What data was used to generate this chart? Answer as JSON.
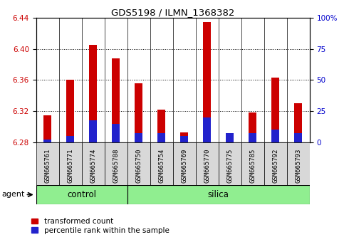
{
  "title": "GDS5198 / ILMN_1368382",
  "samples": [
    "GSM665761",
    "GSM665771",
    "GSM665774",
    "GSM665788",
    "GSM665750",
    "GSM665754",
    "GSM665769",
    "GSM665770",
    "GSM665775",
    "GSM665785",
    "GSM665792",
    "GSM665793"
  ],
  "groups": [
    "control",
    "control",
    "control",
    "control",
    "silica",
    "silica",
    "silica",
    "silica",
    "silica",
    "silica",
    "silica",
    "silica"
  ],
  "transformed_count": [
    6.315,
    6.36,
    6.405,
    6.388,
    6.356,
    6.322,
    6.293,
    6.434,
    6.292,
    6.318,
    6.363,
    6.33
  ],
  "percentile_rank": [
    2.5,
    5.0,
    17.5,
    15.0,
    7.5,
    7.5,
    5.0,
    20.0,
    7.5,
    7.5,
    10.0,
    7.5
  ],
  "base": 6.28,
  "ylim_left": [
    6.28,
    6.44
  ],
  "ylim_right": [
    0,
    100
  ],
  "yticks_left": [
    6.28,
    6.32,
    6.36,
    6.4,
    6.44
  ],
  "yticks_right": [
    0,
    25,
    50,
    75,
    100
  ],
  "bar_width": 0.35,
  "red_color": "#CC0000",
  "blue_color": "#2222CC",
  "control_color": "#90EE90",
  "grid_color": "#000000",
  "xticklabel_fontsize": 6.5,
  "ylabel_left_color": "#CC0000",
  "ylabel_right_color": "#0000CC",
  "agent_label": "agent",
  "control_label": "control",
  "silica_label": "silica",
  "ctrl_count": 4,
  "n_samples": 12
}
